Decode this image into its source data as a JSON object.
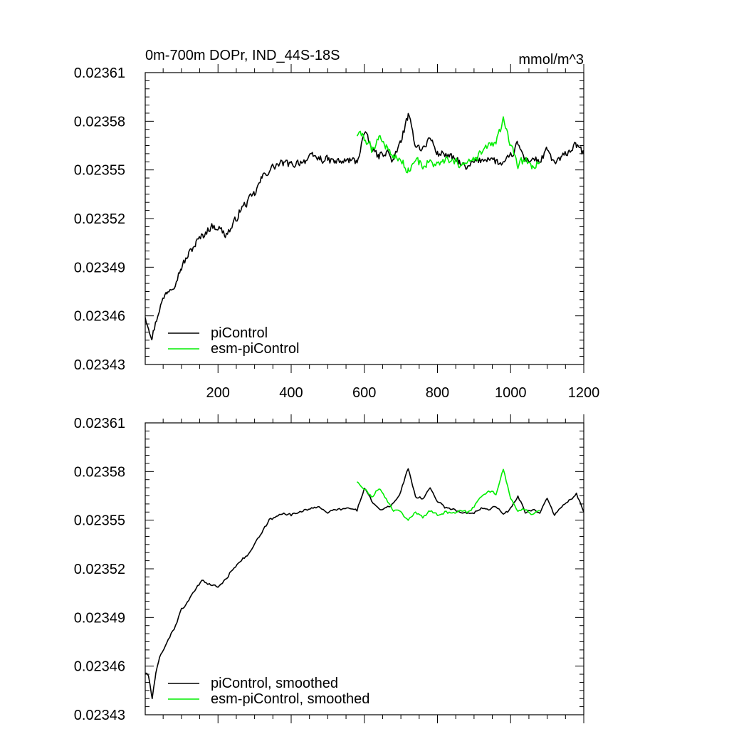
{
  "figure": {
    "title": "0m-700m DOPr, IND_44S-18S",
    "units": "mmol/m^3"
  },
  "chart_data": [
    {
      "type": "line",
      "title": "0m-700m DOPr, IND_44S-18S",
      "units": "mmol/m^3",
      "xlim": [
        1,
        1200
      ],
      "ylim": [
        0.02343,
        0.02361
      ],
      "xticks": [
        200,
        400,
        600,
        800,
        1000,
        1200
      ],
      "xtick_labels": [
        "200",
        "400",
        "600",
        "800",
        "1000",
        "1200"
      ],
      "yticks": [
        0.02343,
        0.02346,
        0.02349,
        0.02352,
        0.02355,
        0.02358,
        0.02361
      ],
      "ytick_labels": [
        "0.02343",
        "0.02346",
        "0.02349",
        "0.02352",
        "0.02355",
        "0.02358",
        "0.02361"
      ],
      "legend_position": "bottom-left",
      "series": [
        {
          "name": "piControl",
          "color": "#000000",
          "x": [
            1,
            20,
            40,
            60,
            80,
            100,
            120,
            140,
            160,
            180,
            200,
            220,
            240,
            260,
            280,
            300,
            320,
            340,
            360,
            380,
            400,
            420,
            440,
            460,
            480,
            500,
            520,
            540,
            560,
            580,
            600,
            620,
            640,
            660,
            680,
            700,
            720,
            740,
            760,
            780,
            800,
            820,
            840,
            860,
            880,
            900,
            920,
            940,
            960,
            980,
            1000,
            1020,
            1040,
            1060,
            1080,
            1100,
            1120,
            1140,
            1160,
            1180,
            1200
          ],
          "values": [
            0.02346,
            0.023447,
            0.023465,
            0.023475,
            0.02348,
            0.02349,
            0.023498,
            0.023505,
            0.02351,
            0.023515,
            0.023515,
            0.02351,
            0.023515,
            0.023525,
            0.02353,
            0.023535,
            0.023545,
            0.02355,
            0.023553,
            0.023554,
            0.023553,
            0.023555,
            0.023556,
            0.023558,
            0.023557,
            0.023556,
            0.023555,
            0.023555,
            0.023556,
            0.023555,
            0.023573,
            0.023563,
            0.023558,
            0.023562,
            0.023555,
            0.023568,
            0.023583,
            0.023566,
            0.023563,
            0.02357,
            0.02356,
            0.02356,
            0.023557,
            0.023555,
            0.02355,
            0.023555,
            0.023556,
            0.023558,
            0.023555,
            0.023553,
            0.023558,
            0.023566,
            0.023556,
            0.023557,
            0.023555,
            0.023562,
            0.023554,
            0.023557,
            0.023562,
            0.023565,
            0.02356
          ],
          "noise": 3.5e-06
        },
        {
          "name": "esm-piControl",
          "color": "#00ee00",
          "x": [
            580,
            600,
            620,
            640,
            660,
            680,
            700,
            720,
            740,
            760,
            780,
            800,
            820,
            840,
            860,
            880,
            900,
            920,
            940,
            960,
            980,
            1000,
            1020,
            1040,
            1060,
            1080
          ],
          "values": [
            0.023572,
            0.02357,
            0.023563,
            0.02357,
            0.023565,
            0.023558,
            0.023556,
            0.02355,
            0.023556,
            0.023553,
            0.023555,
            0.023552,
            0.023556,
            0.023554,
            0.023554,
            0.023553,
            0.023556,
            0.02356,
            0.023565,
            0.023567,
            0.02358,
            0.023564,
            0.023553,
            0.023556,
            0.023552,
            0.023555
          ],
          "noise": 4e-06
        }
      ]
    },
    {
      "type": "line",
      "xlim": [
        1,
        1200
      ],
      "ylim": [
        0.02343,
        0.02361
      ],
      "xticks": [
        200,
        400,
        600,
        800,
        1000,
        1200
      ],
      "yticks": [
        0.02343,
        0.02346,
        0.02349,
        0.02352,
        0.02355,
        0.02358,
        0.02361
      ],
      "ytick_labels": [
        "0.02343",
        "0.02346",
        "0.02349",
        "0.02352",
        "0.02355",
        "0.02358",
        "0.02361"
      ],
      "legend_position": "bottom-left",
      "series": [
        {
          "name": "piControl, smoothed",
          "color": "#000000",
          "x": [
            1,
            10,
            20,
            30,
            40,
            60,
            80,
            100,
            120,
            140,
            160,
            180,
            200,
            220,
            240,
            260,
            280,
            300,
            320,
            340,
            360,
            380,
            400,
            420,
            440,
            460,
            480,
            500,
            520,
            540,
            560,
            580,
            600,
            620,
            640,
            660,
            680,
            700,
            720,
            740,
            760,
            780,
            800,
            820,
            840,
            860,
            880,
            900,
            920,
            940,
            960,
            980,
            1000,
            1020,
            1040,
            1060,
            1080,
            1100,
            1120,
            1140,
            1160,
            1180,
            1200
          ],
          "values": [
            0.023456,
            0.023454,
            0.02344,
            0.023455,
            0.023465,
            0.023475,
            0.023483,
            0.023495,
            0.0235,
            0.023508,
            0.023513,
            0.02351,
            0.023509,
            0.023513,
            0.02352,
            0.023525,
            0.023528,
            0.023535,
            0.023542,
            0.02355,
            0.023552,
            0.023555,
            0.023553,
            0.023555,
            0.023557,
            0.023557,
            0.023558,
            0.023555,
            0.023556,
            0.023557,
            0.023557,
            0.023556,
            0.02357,
            0.023562,
            0.023556,
            0.023558,
            0.02356,
            0.023568,
            0.023582,
            0.023565,
            0.023563,
            0.02357,
            0.023562,
            0.023558,
            0.023557,
            0.023555,
            0.023554,
            0.023555,
            0.023558,
            0.023557,
            0.023559,
            0.023553,
            0.023557,
            0.023565,
            0.023555,
            0.023557,
            0.023554,
            0.023564,
            0.023553,
            0.023558,
            0.023562,
            0.023566,
            0.023555
          ],
          "noise": 1.2e-06
        },
        {
          "name": "esm-piControl, smoothed",
          "color": "#00ee00",
          "x": [
            580,
            600,
            620,
            640,
            660,
            680,
            700,
            720,
            740,
            760,
            780,
            800,
            820,
            840,
            860,
            880,
            900,
            920,
            940,
            960,
            980,
            1000,
            1020,
            1040,
            1060,
            1080
          ],
          "values": [
            0.023574,
            0.02357,
            0.023564,
            0.02357,
            0.023563,
            0.023556,
            0.023555,
            0.02355,
            0.023555,
            0.023552,
            0.023556,
            0.023553,
            0.023555,
            0.023554,
            0.023556,
            0.023555,
            0.023558,
            0.023565,
            0.023568,
            0.023566,
            0.023582,
            0.023563,
            0.023556,
            0.023557,
            0.023553,
            0.023556
          ],
          "noise": 1.2e-06
        }
      ]
    }
  ]
}
